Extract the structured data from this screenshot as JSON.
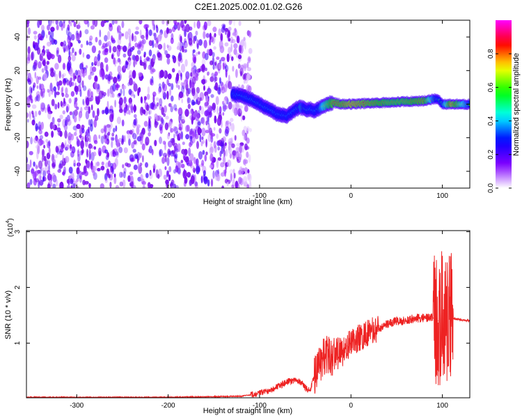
{
  "figure_title": "C2E1.2025.002.01.02.G26",
  "chart_data": [
    {
      "type": "heatmap",
      "title": "C2E1.2025.002.01.02.G26",
      "xlabel": "Height of straight line (km)",
      "ylabel": "Frequency (Hz)",
      "xlim": [
        -355,
        130
      ],
      "ylim": [
        -50,
        50
      ],
      "xticks": [
        -300,
        -200,
        -100,
        0,
        100
      ],
      "xtick_labels": [
        "-300",
        "-200",
        "-100",
        "0",
        "100"
      ],
      "yticks": [
        -40,
        -20,
        0,
        20,
        40
      ],
      "ytick_labels": [
        "-40",
        "-20",
        "0",
        "20",
        "40"
      ],
      "colorbar": {
        "label": "Normalized spectral amplitude",
        "range": [
          0,
          1
        ],
        "ticks": [
          0,
          0.2,
          0.4,
          0.6,
          0.8
        ],
        "tick_labels": [
          "0.0",
          "0.2",
          "0.4",
          "0.6",
          "0.8"
        ],
        "colors": [
          "#ffffff",
          "#8000ff",
          "#0000ff",
          "#00ffff",
          "#00ff00",
          "#ffff00",
          "#ff0000",
          "#ff00ff"
        ]
      },
      "noise_region": {
        "x_range": [
          -355,
          -120
        ],
        "y_range": [
          -50,
          50
        ],
        "typical_amplitude": 0.15
      },
      "ridge": {
        "x": [
          -130,
          -120,
          -110,
          -100,
          -90,
          -80,
          -70,
          -60,
          -55,
          -50,
          -45,
          -40,
          -30,
          -20,
          -10,
          0,
          20,
          40,
          60,
          80,
          90,
          95,
          100,
          110,
          130
        ],
        "frequency": [
          6,
          5,
          3,
          0,
          -3,
          -6,
          -7,
          -3,
          -2,
          -3,
          -3,
          -4,
          -1,
          1,
          0,
          0,
          0.5,
          1,
          1.5,
          2,
          3,
          3,
          0,
          0,
          0
        ],
        "amplitude": [
          0.35,
          0.45,
          0.45,
          0.45,
          0.45,
          0.4,
          0.4,
          0.45,
          0.6,
          0.5,
          0.45,
          0.4,
          0.7,
          0.85,
          0.85,
          0.9,
          0.85,
          0.8,
          0.8,
          0.85,
          0.6,
          0.5,
          0.55,
          0.9,
          0.55
        ]
      },
      "grid": false
    },
    {
      "type": "line",
      "xlabel": "Height of straight line (km)",
      "ylabel": "SNR (10 * v/v)",
      "y_multiplier_label": "(x10",
      "y_multiplier_exponent": "4",
      "xlim": [
        -355,
        130
      ],
      "ylim": [
        0.02,
        3.02
      ],
      "xticks": [
        -300,
        -200,
        -100,
        0,
        100
      ],
      "xtick_labels": [
        "-300",
        "-200",
        "-100",
        "0",
        "100"
      ],
      "yticks": [
        1,
        2,
        3
      ],
      "ytick_labels": [
        "1",
        "2",
        "3"
      ],
      "series": [
        {
          "color": "#ee2222",
          "x": [
            -355,
            -300,
            -200,
            -150,
            -120,
            -110,
            -100,
            -90,
            -80,
            -70,
            -60,
            -55,
            -50,
            -45,
            -40,
            -35,
            -30,
            -25,
            -20,
            -15,
            -10,
            -5,
            0,
            10,
            20,
            30,
            40,
            50,
            60,
            70,
            80,
            90,
            95,
            100,
            105,
            110,
            120,
            130
          ],
          "y": [
            0.03,
            0.03,
            0.03,
            0.04,
            0.05,
            0.07,
            0.1,
            0.15,
            0.22,
            0.3,
            0.35,
            0.3,
            0.2,
            0.15,
            0.4,
            0.6,
            0.75,
            0.8,
            0.75,
            0.85,
            0.8,
            0.95,
            1.0,
            1.1,
            1.2,
            1.25,
            1.35,
            1.4,
            1.4,
            1.45,
            1.45,
            1.45,
            1.4,
            1.5,
            1.5,
            1.45,
            1.42,
            1.4
          ]
        }
      ],
      "grid": false
    }
  ]
}
